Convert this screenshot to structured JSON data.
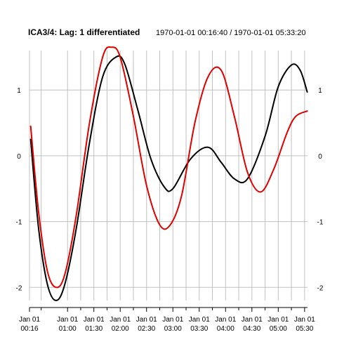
{
  "title": {
    "main": "ICA3/4:  Lag: 1 differentiated",
    "range": "1970-01-01 00:16:40 / 1970-01-01 05:33:20"
  },
  "chart_data": {
    "type": "line",
    "title": "ICA3/4:  Lag: 1 differentiated",
    "subtitle": "1970-01-01 00:16:40 / 1970-01-01 05:33:20",
    "xlabel": "",
    "ylabel": "",
    "grid": true,
    "x_tick_labels": [
      {
        "t": "00:16:40",
        "label": [
          "Jan 01",
          "00:16"
        ]
      },
      {
        "t": "01:00:00",
        "label": [
          "Jan 01",
          "01:00"
        ]
      },
      {
        "t": "01:30:00",
        "label": [
          "Jan 01",
          "01:30"
        ]
      },
      {
        "t": "02:00:00",
        "label": [
          "Jan 01",
          "02:00"
        ]
      },
      {
        "t": "02:30:00",
        "label": [
          "Jan 01",
          "02:30"
        ]
      },
      {
        "t": "03:00:00",
        "label": [
          "Jan 01",
          "03:00"
        ]
      },
      {
        "t": "03:30:00",
        "label": [
          "Jan 01",
          "03:30"
        ]
      },
      {
        "t": "04:00:00",
        "label": [
          "Jan 01",
          "04:00"
        ]
      },
      {
        "t": "04:30:00",
        "label": [
          "Jan 01",
          "04:30"
        ]
      },
      {
        "t": "05:00:00",
        "label": [
          "Jan 01",
          "05:00"
        ]
      },
      {
        "t": "05:30:00",
        "label": [
          "Jan 01",
          "05:30"
        ]
      }
    ],
    "x_minor_ticks": [
      "00:30:00",
      "01:15:00",
      "01:45:00",
      "02:15:00",
      "02:45:00",
      "03:15:00",
      "03:45:00",
      "04:15:00",
      "04:45:00",
      "05:15:00"
    ],
    "y_ticks": [
      -2,
      -1,
      0,
      1
    ],
    "y_tick_labels": [
      "-2",
      "-1",
      "0",
      "1"
    ],
    "xlim": [
      "00:16:40",
      "05:33:20"
    ],
    "ylim": [
      -2.2,
      1.6
    ],
    "series": [
      {
        "color": "#000000",
        "points": [
          [
            "00:18:00",
            0.25
          ],
          [
            "00:27:00",
            -1.1
          ],
          [
            "00:37:00",
            -1.95
          ],
          [
            "00:47:00",
            -2.2
          ],
          [
            "00:57:00",
            -1.95
          ],
          [
            "01:10:00",
            -1.1
          ],
          [
            "01:25:00",
            0.2
          ],
          [
            "01:40:00",
            1.2
          ],
          [
            "01:55:00",
            1.5
          ],
          [
            "02:05:00",
            1.4
          ],
          [
            "02:20:00",
            0.7
          ],
          [
            "02:35:00",
            -0.05
          ],
          [
            "02:50:00",
            -0.47
          ],
          [
            "03:00:00",
            -0.5
          ],
          [
            "03:20:00",
            -0.05
          ],
          [
            "03:40:00",
            0.13
          ],
          [
            "03:55:00",
            -0.1
          ],
          [
            "04:10:00",
            -0.35
          ],
          [
            "04:25:00",
            -0.35
          ],
          [
            "04:45:00",
            0.3
          ],
          [
            "05:00:00",
            1.05
          ],
          [
            "05:15:00",
            1.38
          ],
          [
            "05:25:00",
            1.3
          ],
          [
            "05:33:00",
            0.97
          ]
        ]
      },
      {
        "color": "#e00000",
        "points": [
          [
            "00:18:00",
            0.45
          ],
          [
            "00:27:00",
            -0.85
          ],
          [
            "00:37:00",
            -1.75
          ],
          [
            "00:47:00",
            -2.0
          ],
          [
            "00:57:00",
            -1.8
          ],
          [
            "01:10:00",
            -0.9
          ],
          [
            "01:25:00",
            0.5
          ],
          [
            "01:40:00",
            1.5
          ],
          [
            "01:50:00",
            1.65
          ],
          [
            "02:00:00",
            1.5
          ],
          [
            "02:15:00",
            0.6
          ],
          [
            "02:30:00",
            -0.45
          ],
          [
            "02:45:00",
            -1.05
          ],
          [
            "02:57:00",
            -1.05
          ],
          [
            "03:10:00",
            -0.6
          ],
          [
            "03:25:00",
            0.5
          ],
          [
            "03:40:00",
            1.2
          ],
          [
            "03:55:00",
            1.3
          ],
          [
            "04:10:00",
            0.6
          ],
          [
            "04:25:00",
            -0.25
          ],
          [
            "04:40:00",
            -0.55
          ],
          [
            "04:55:00",
            -0.2
          ],
          [
            "05:10:00",
            0.35
          ],
          [
            "05:20:00",
            0.6
          ],
          [
            "05:33:00",
            0.68
          ]
        ]
      }
    ]
  }
}
